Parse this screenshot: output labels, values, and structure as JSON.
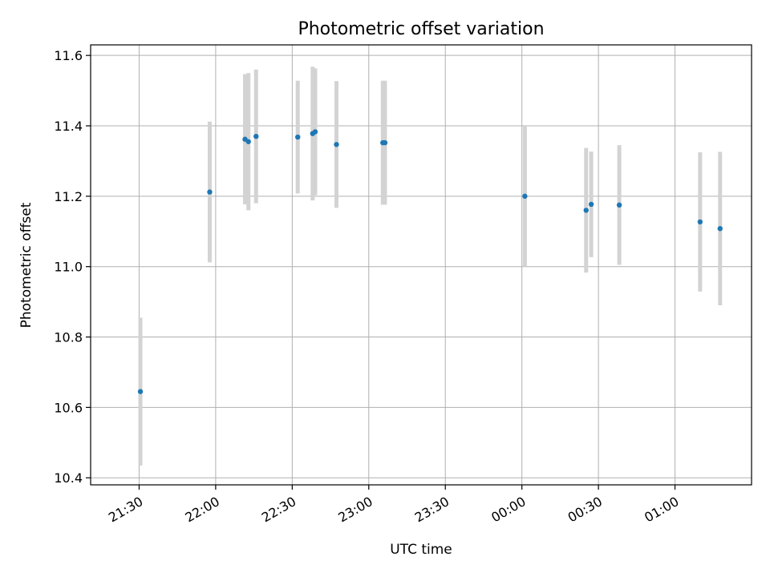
{
  "chart_data": {
    "type": "scatter",
    "title": "Photometric offset variation",
    "xlabel": "UTC time",
    "ylabel": "Photometric offset",
    "grid": true,
    "xlim": [
      "21:11",
      "01:30"
    ],
    "ylim": [
      10.38,
      11.63
    ],
    "y_ticks": [
      10.4,
      10.6,
      10.8,
      11.0,
      11.2,
      11.4,
      11.6
    ],
    "x_ticks": [
      "21:30",
      "22:00",
      "22:30",
      "23:00",
      "23:30",
      "00:00",
      "00:30",
      "01:00"
    ],
    "colors": {
      "point": "#1f77b4",
      "errorbar": "#d3d3d3"
    },
    "points": [
      {
        "x": "21:30:30",
        "y": 10.645,
        "err": 0.21
      },
      {
        "x": "21:57:40",
        "y": 11.212,
        "err": 0.2
      },
      {
        "x": "22:11:30",
        "y": 11.362,
        "err": 0.185
      },
      {
        "x": "22:12:50",
        "y": 11.355,
        "err": 0.195
      },
      {
        "x": "22:15:50",
        "y": 11.37,
        "err": 0.19
      },
      {
        "x": "22:32:10",
        "y": 11.368,
        "err": 0.16
      },
      {
        "x": "22:38:00",
        "y": 11.378,
        "err": 0.19
      },
      {
        "x": "22:39:00",
        "y": 11.383,
        "err": 0.18
      },
      {
        "x": "22:47:20",
        "y": 11.347,
        "err": 0.18
      },
      {
        "x": "23:05:30",
        "y": 11.352,
        "err": 0.176
      },
      {
        "x": "23:06:20",
        "y": 11.352,
        "err": 0.176
      },
      {
        "x": "00:01:10",
        "y": 11.2,
        "err": 0.2
      },
      {
        "x": "00:25:10",
        "y": 11.16,
        "err": 0.177
      },
      {
        "x": "00:27:10",
        "y": 11.177,
        "err": 0.15
      },
      {
        "x": "00:38:10",
        "y": 11.175,
        "err": 0.17
      },
      {
        "x": "01:09:50",
        "y": 11.127,
        "err": 0.198
      },
      {
        "x": "01:17:40",
        "y": 11.108,
        "err": 0.218
      }
    ]
  }
}
